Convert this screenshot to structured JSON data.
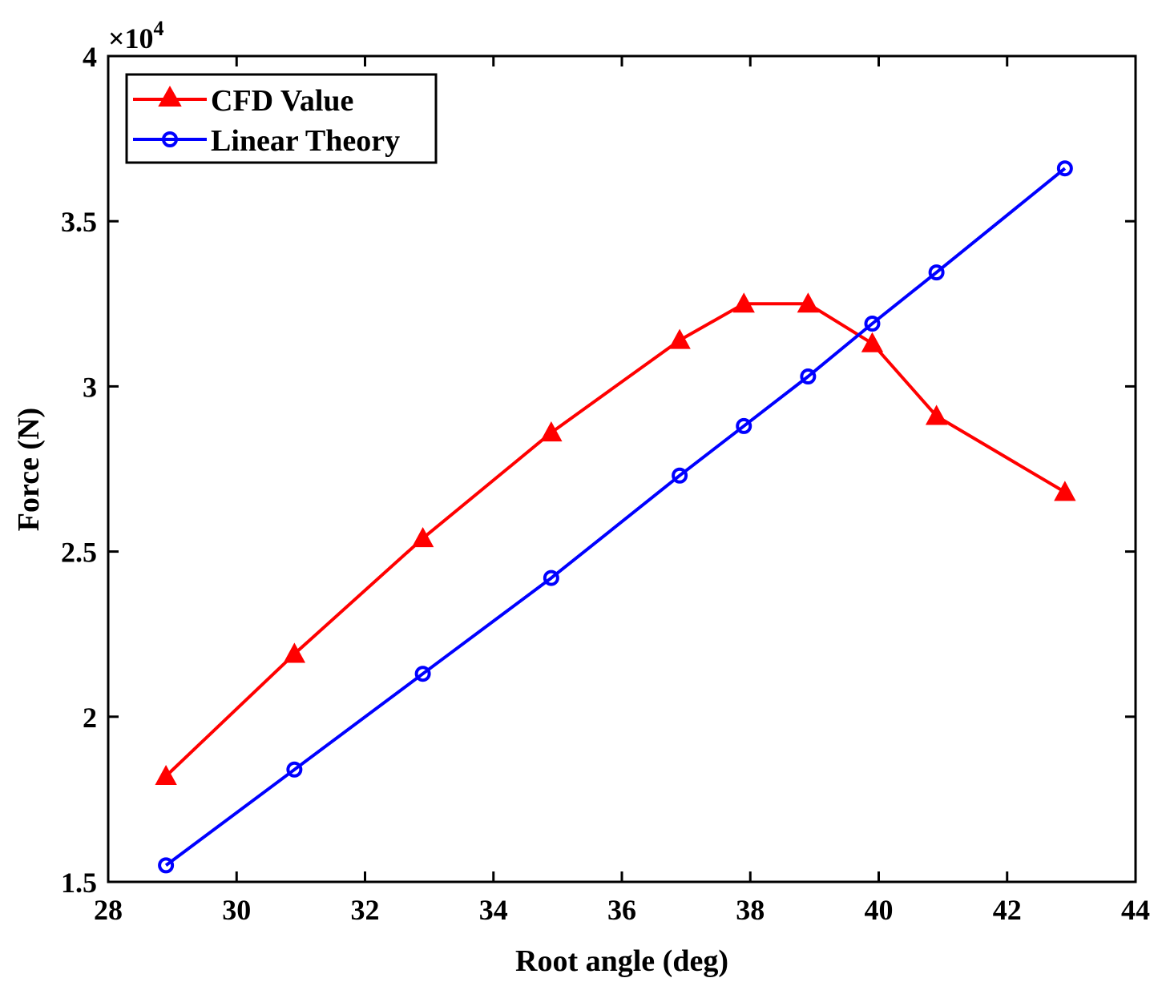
{
  "chart_data": {
    "type": "line",
    "title": "",
    "xlabel": "Root angle (deg)",
    "ylabel": "Force  (N)",
    "xlim": [
      28,
      44
    ],
    "ylim": [
      15000,
      40000
    ],
    "xticks": [
      28,
      30,
      32,
      34,
      36,
      38,
      40,
      42,
      44
    ],
    "yticks": [
      15000,
      20000,
      25000,
      30000,
      35000,
      40000
    ],
    "ytick_labels": [
      "1.5",
      "2",
      "2.5",
      "3",
      "3.5",
      "4"
    ],
    "y_exponent_label": "×10",
    "y_exponent_power": "4",
    "legend_position": "top-left",
    "series": [
      {
        "name": "CFD Value",
        "color": "#ff0000",
        "marker": "triangle",
        "x": [
          28.9,
          30.9,
          32.9,
          34.9,
          36.9,
          37.9,
          38.9,
          39.9,
          40.9,
          42.9
        ],
        "values": [
          18200,
          21900,
          25400,
          28600,
          31400,
          32500,
          32500,
          31300,
          29100,
          26800
        ]
      },
      {
        "name": "Linear Theory",
        "color": "#0000ff",
        "marker": "circle",
        "x": [
          28.9,
          30.9,
          32.9,
          34.9,
          36.9,
          37.9,
          38.9,
          39.9,
          40.9,
          42.9
        ],
        "values": [
          15500,
          18400,
          21300,
          24200,
          27300,
          28800,
          30300,
          31900,
          33450,
          36600
        ]
      }
    ]
  }
}
